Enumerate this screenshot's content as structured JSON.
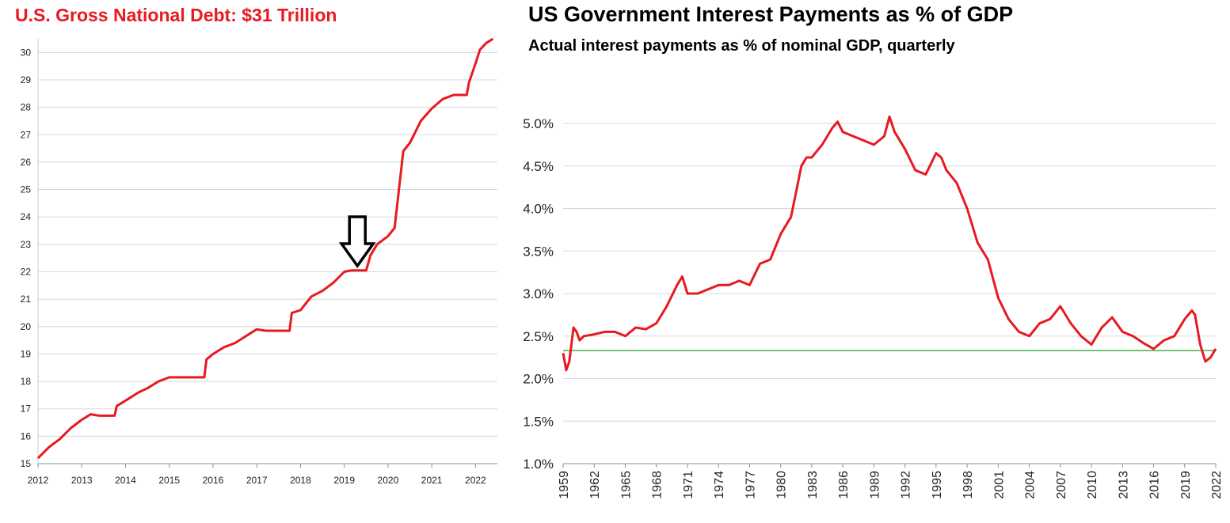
{
  "left": {
    "title": "U.S. Gross National Debt: $31 Trillion"
  },
  "right": {
    "title": "US Government Interest Payments as % of GDP",
    "subtitle": "Actual interest payments as % of nominal GDP, quarterly"
  },
  "colors": {
    "line": "#e8191f",
    "reference": "#4caf50",
    "grid": "#d3d8e0",
    "arrow": "#000000"
  },
  "chart_data": [
    {
      "type": "line",
      "title": "U.S. Gross National Debt: $31 Trillion",
      "xlabel": "",
      "ylabel": "",
      "xlim": [
        2012,
        2022.5
      ],
      "ylim": [
        15,
        30.5
      ],
      "xticks": [
        "2012",
        "2013",
        "2014",
        "2015",
        "2016",
        "2017",
        "2018",
        "2019",
        "2020",
        "2021",
        "2022"
      ],
      "yticks": [
        "15",
        "16",
        "17",
        "18",
        "19",
        "20",
        "21",
        "22",
        "23",
        "24",
        "25",
        "26",
        "27",
        "28",
        "29",
        "30"
      ],
      "grid": true,
      "annotation": {
        "type": "down-arrow",
        "x": 2019.3,
        "y": 22.1,
        "icon": "down-arrow-icon"
      },
      "series": [
        {
          "x": [
            2012.0,
            2012.25,
            2012.5,
            2012.75,
            2013.0,
            2013.2,
            2013.4,
            2013.75,
            2013.8,
            2014.0,
            2014.2,
            2014.3,
            2014.5,
            2014.75,
            2015.0,
            2015.2,
            2015.8,
            2015.85,
            2016.0,
            2016.25,
            2016.5,
            2016.75,
            2017.0,
            2017.2,
            2017.75,
            2017.8,
            2018.0,
            2018.25,
            2018.5,
            2018.75,
            2019.0,
            2019.15,
            2019.5,
            2019.6,
            2019.75,
            2020.0,
            2020.15,
            2020.25,
            2020.35,
            2020.5,
            2020.75,
            2021.0,
            2021.25,
            2021.5,
            2021.6,
            2021.8,
            2021.85,
            2022.0,
            2022.1,
            2022.25,
            2022.4
          ],
          "y": [
            15.2,
            15.6,
            15.9,
            16.3,
            16.6,
            16.8,
            16.75,
            16.75,
            17.1,
            17.3,
            17.5,
            17.6,
            17.75,
            18.0,
            18.15,
            18.15,
            18.15,
            18.8,
            19.0,
            19.25,
            19.4,
            19.65,
            19.9,
            19.85,
            19.85,
            20.5,
            20.6,
            21.1,
            21.3,
            21.6,
            22.0,
            22.05,
            22.05,
            22.6,
            23.0,
            23.3,
            23.6,
            25.0,
            26.4,
            26.7,
            27.5,
            27.95,
            28.3,
            28.45,
            28.45,
            28.45,
            28.9,
            29.6,
            30.1,
            30.35,
            30.5
          ]
        }
      ]
    },
    {
      "type": "line",
      "title": "US Government Interest Payments as % of GDP",
      "subtitle": "Actual interest payments as % of nominal GDP, quarterly",
      "xlabel": "",
      "ylabel": "",
      "xlim": [
        1959,
        2022
      ],
      "ylim": [
        1.0,
        5.0
      ],
      "xticks": [
        "1959",
        "1962",
        "1965",
        "1968",
        "1971",
        "1974",
        "1977",
        "1980",
        "1983",
        "1986",
        "1989",
        "1992",
        "1995",
        "1998",
        "2001",
        "2004",
        "2007",
        "2010",
        "2013",
        "2016",
        "2019",
        "2022"
      ],
      "yticks": [
        "1.0%",
        "1.5%",
        "2.0%",
        "2.5%",
        "3.0%",
        "3.5%",
        "4.0%",
        "4.5%",
        "5.0%"
      ],
      "grid": true,
      "reference_line": {
        "y": 2.33
      },
      "series": [
        {
          "x": [
            1959.0,
            1959.3,
            1959.6,
            1960.0,
            1960.3,
            1960.6,
            1961.0,
            1962.0,
            1963.0,
            1964.0,
            1965.0,
            1966.0,
            1967.0,
            1968.0,
            1969.0,
            1970.0,
            1970.5,
            1971.0,
            1972.0,
            1973.0,
            1974.0,
            1975.0,
            1976.0,
            1977.0,
            1978.0,
            1979.0,
            1980.0,
            1980.5,
            1981.0,
            1981.5,
            1982.0,
            1982.5,
            1983.0,
            1984.0,
            1985.0,
            1985.5,
            1986.0,
            1987.0,
            1988.0,
            1989.0,
            1990.0,
            1990.5,
            1991.0,
            1992.0,
            1993.0,
            1994.0,
            1995.0,
            1995.5,
            1996.0,
            1997.0,
            1998.0,
            1999.0,
            1999.5,
            2000.0,
            2001.0,
            2002.0,
            2003.0,
            2004.0,
            2005.0,
            2006.0,
            2007.0,
            2008.0,
            2009.0,
            2010.0,
            2011.0,
            2012.0,
            2013.0,
            2014.0,
            2015.0,
            2016.0,
            2017.0,
            2018.0,
            2019.0,
            2019.7,
            2020.0,
            2020.5,
            2021.0,
            2021.5,
            2022.0
          ],
          "y": [
            2.3,
            2.1,
            2.2,
            2.6,
            2.55,
            2.45,
            2.5,
            2.52,
            2.55,
            2.55,
            2.5,
            2.6,
            2.58,
            2.65,
            2.85,
            3.1,
            3.2,
            3.0,
            3.0,
            3.05,
            3.1,
            3.1,
            3.15,
            3.1,
            3.35,
            3.4,
            3.7,
            3.8,
            3.9,
            4.2,
            4.5,
            4.6,
            4.6,
            4.75,
            4.95,
            5.02,
            4.9,
            4.85,
            4.8,
            4.75,
            4.85,
            5.08,
            4.9,
            4.7,
            4.45,
            4.4,
            4.65,
            4.6,
            4.45,
            4.3,
            4.0,
            3.6,
            3.5,
            3.4,
            2.95,
            2.7,
            2.55,
            2.5,
            2.65,
            2.7,
            2.85,
            2.65,
            2.5,
            2.4,
            2.6,
            2.72,
            2.55,
            2.5,
            2.42,
            2.35,
            2.45,
            2.5,
            2.7,
            2.8,
            2.75,
            2.4,
            2.2,
            2.25,
            2.35
          ]
        }
      ]
    }
  ]
}
